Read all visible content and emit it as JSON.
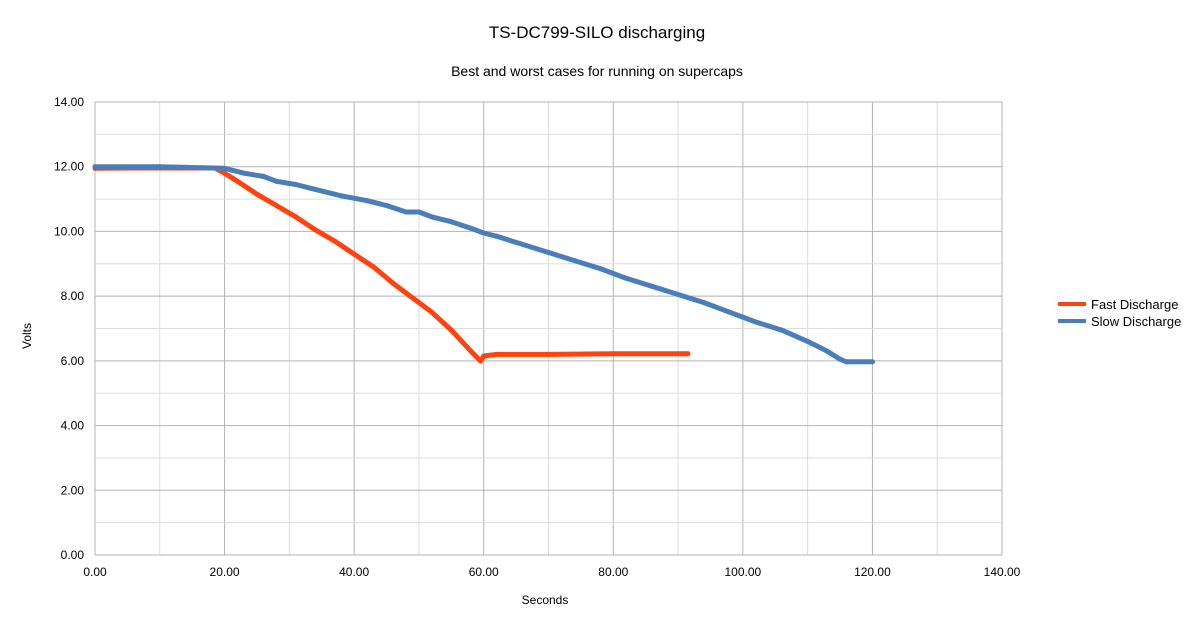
{
  "chart_data": {
    "type": "line",
    "title": "TS-DC799-SILO discharging",
    "subtitle": "Best and worst cases for running on supercaps",
    "xlabel": "Seconds",
    "ylabel": "Volts",
    "xlim": [
      0,
      140
    ],
    "ylim": [
      0,
      14
    ],
    "xticks": [
      "0.00",
      "20.00",
      "40.00",
      "60.00",
      "80.00",
      "100.00",
      "120.00",
      "140.00"
    ],
    "yticks": [
      "0.00",
      "2.00",
      "4.00",
      "6.00",
      "8.00",
      "10.00",
      "12.00",
      "14.00"
    ],
    "grid": true,
    "legend_position": "right",
    "series": [
      {
        "name": "Fast Discharge",
        "color": "#ff420e",
        "points": [
          [
            0,
            11.95
          ],
          [
            5,
            11.96
          ],
          [
            10,
            11.96
          ],
          [
            15,
            11.96
          ],
          [
            18.5,
            11.96
          ],
          [
            20,
            11.8
          ],
          [
            22,
            11.55
          ],
          [
            25,
            11.15
          ],
          [
            28,
            10.8
          ],
          [
            31,
            10.45
          ],
          [
            34,
            10.05
          ],
          [
            37,
            9.7
          ],
          [
            40,
            9.3
          ],
          [
            43,
            8.9
          ],
          [
            46,
            8.4
          ],
          [
            49,
            7.95
          ],
          [
            52,
            7.5
          ],
          [
            55,
            6.95
          ],
          [
            58,
            6.3
          ],
          [
            59.5,
            6.0
          ],
          [
            60,
            6.15
          ],
          [
            62,
            6.2
          ],
          [
            70,
            6.2
          ],
          [
            80,
            6.22
          ],
          [
            91.5,
            6.22
          ]
        ]
      },
      {
        "name": "Slow Discharge",
        "color": "#4a7ebb",
        "points": [
          [
            0,
            12.0
          ],
          [
            10,
            12.0
          ],
          [
            20,
            11.95
          ],
          [
            23,
            11.8
          ],
          [
            26,
            11.7
          ],
          [
            28,
            11.55
          ],
          [
            31,
            11.45
          ],
          [
            34,
            11.3
          ],
          [
            38,
            11.1
          ],
          [
            42,
            10.95
          ],
          [
            45,
            10.8
          ],
          [
            48,
            10.6
          ],
          [
            50,
            10.6
          ],
          [
            52,
            10.45
          ],
          [
            55,
            10.3
          ],
          [
            58,
            10.1
          ],
          [
            60,
            9.95
          ],
          [
            62,
            9.85
          ],
          [
            66,
            9.6
          ],
          [
            70,
            9.35
          ],
          [
            74,
            9.1
          ],
          [
            78,
            8.85
          ],
          [
            82,
            8.55
          ],
          [
            86,
            8.3
          ],
          [
            90,
            8.05
          ],
          [
            94,
            7.8
          ],
          [
            98,
            7.5
          ],
          [
            102,
            7.2
          ],
          [
            106,
            6.95
          ],
          [
            110,
            6.6
          ],
          [
            113,
            6.3
          ],
          [
            115,
            6.05
          ],
          [
            116,
            5.97
          ],
          [
            120,
            5.97
          ]
        ]
      }
    ]
  }
}
